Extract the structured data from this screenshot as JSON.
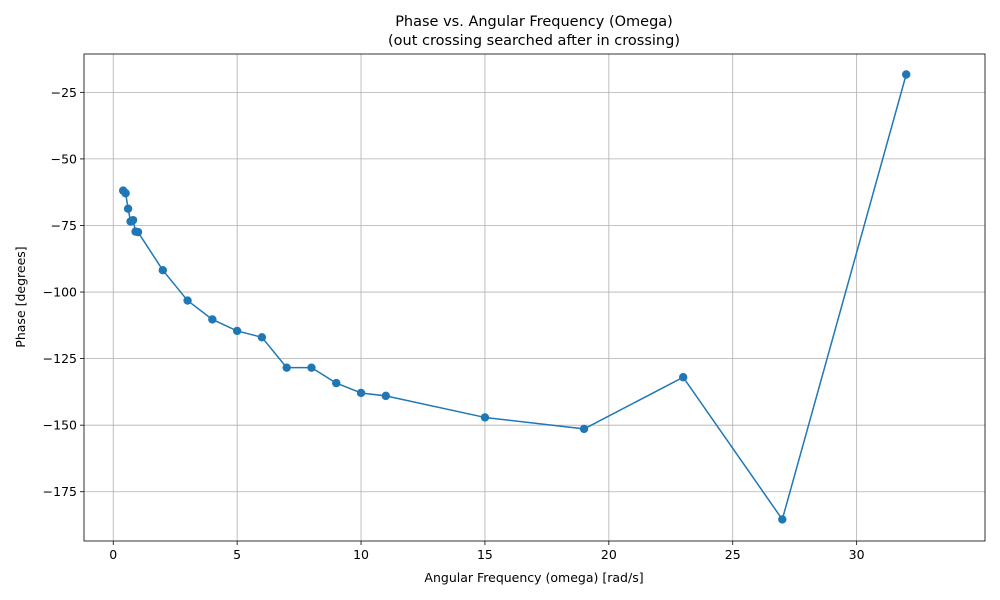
{
  "chart_data": {
    "type": "line",
    "title": "Phase vs. Angular Frequency (Omega)",
    "subtitle": "(out crossing searched after in crossing)",
    "xlabel": "Angular Frequency (omega) [rad/s]",
    "ylabel": "Phase [degrees]",
    "xlim": [
      -1.18,
      35.18
    ],
    "ylim": [
      -193.5,
      -10.6
    ],
    "xticks": [
      0,
      5,
      10,
      15,
      20,
      25,
      30
    ],
    "yticks": [
      -175,
      -150,
      -125,
      -100,
      -75,
      -50,
      -25
    ],
    "grid": true,
    "marker": "circle",
    "series_color": "#1f77b4",
    "series": [
      {
        "x": [
          0.4,
          0.5,
          0.6,
          0.7,
          0.8,
          0.9,
          1.0,
          2,
          3,
          4,
          5,
          6,
          7,
          8,
          9,
          10,
          11,
          15,
          19,
          23,
          27,
          32
        ],
        "y": [
          -61.9,
          -62.9,
          -68.7,
          -73.5,
          -73.0,
          -77.3,
          -77.5,
          -91.8,
          -103.2,
          -110.3,
          -114.6,
          -117.0,
          -128.4,
          -128.4,
          -134.2,
          -137.9,
          -139.0,
          -147.1,
          -151.4,
          -132.0,
          -185.4,
          -18.3
        ]
      }
    ]
  }
}
